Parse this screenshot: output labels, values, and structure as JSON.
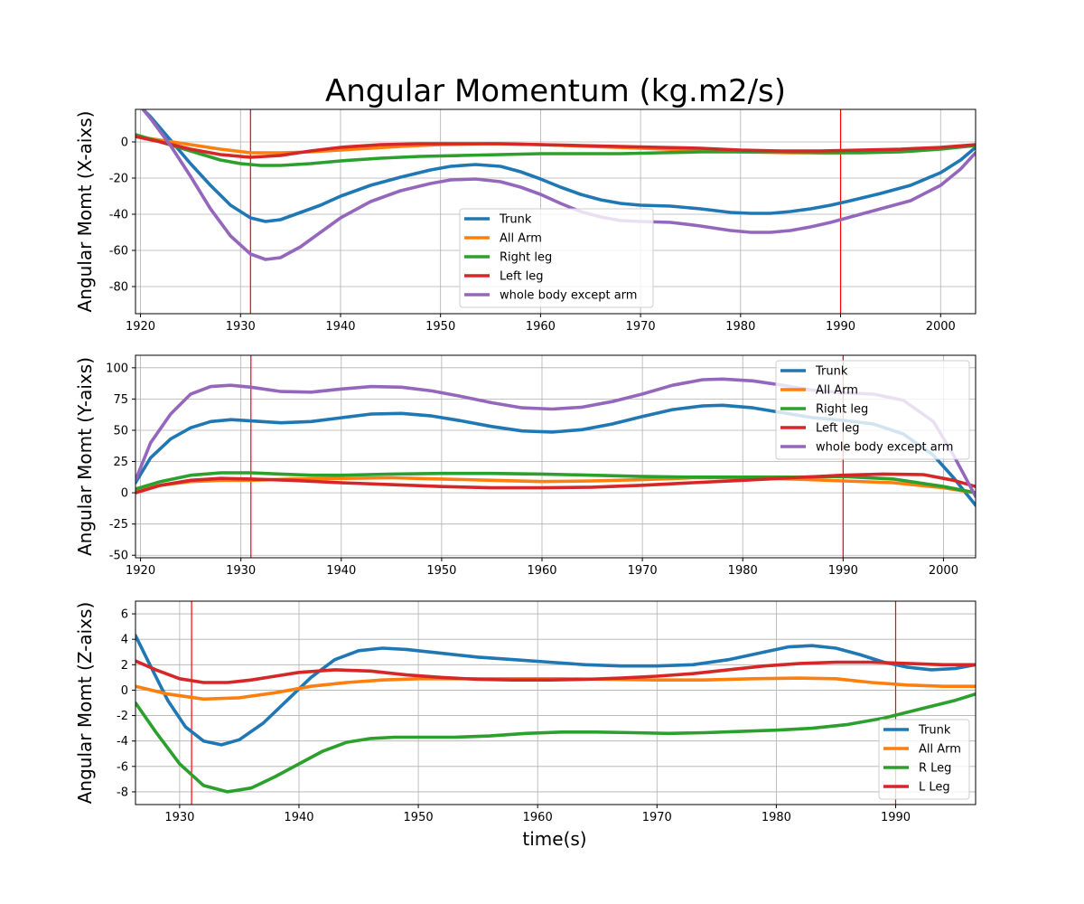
{
  "figure": {
    "title": "Angular Momentum (kg.m2/s)",
    "xlabel": "time(s)"
  },
  "chart_data": [
    {
      "type": "line",
      "ylabel": "Angular Momt (X-aixs)",
      "xlim": [
        1919.5,
        2003.5
      ],
      "ylim": [
        -95,
        18
      ],
      "xticks": [
        1920,
        1930,
        1940,
        1950,
        1960,
        1970,
        1980,
        1990,
        2000
      ],
      "yticks": [
        0,
        -20,
        -40,
        -60,
        -80
      ],
      "grid": true,
      "legend_position": "lower-center",
      "vlines": [
        1931,
        1990
      ],
      "series": [
        {
          "name": "Trunk",
          "color": "#1f77b4",
          "x": [
            1919.5,
            1921,
            1923,
            1925,
            1927,
            1929,
            1931,
            1932.5,
            1934,
            1936,
            1938,
            1940,
            1943,
            1946,
            1949,
            1951,
            1953.5,
            1956,
            1958,
            1960,
            1962,
            1964,
            1966,
            1968,
            1970,
            1973,
            1976,
            1979,
            1981,
            1983,
            1985,
            1987,
            1989,
            1991,
            1994,
            1997,
            2000,
            2002,
            2003.5
          ],
          "y": [
            22,
            14,
            1,
            -12,
            -24,
            -35,
            -42,
            -44,
            -43,
            -39,
            -35,
            -30,
            -24,
            -19.5,
            -15.5,
            -13.5,
            -12.5,
            -13.5,
            -16.5,
            -20.5,
            -25,
            -29,
            -32,
            -34,
            -35,
            -35.5,
            -37,
            -39,
            -39.5,
            -39.5,
            -38.5,
            -37,
            -35,
            -32.5,
            -28.5,
            -24,
            -17,
            -10,
            -3
          ]
        },
        {
          "name": "All Arm",
          "color": "#ff7f0e",
          "x": [
            1919.5,
            1922,
            1925,
            1928,
            1931,
            1934,
            1937,
            1940,
            1943,
            1946,
            1950,
            1955,
            1960,
            1965,
            1970,
            1975,
            1980,
            1985,
            1990,
            1995,
            2000,
            2003.5
          ],
          "y": [
            3,
            1,
            -1.5,
            -4,
            -6,
            -6,
            -5.5,
            -4.5,
            -3.5,
            -2.5,
            -1.5,
            -1,
            -1.5,
            -2.5,
            -3.5,
            -4.5,
            -5.5,
            -6,
            -6,
            -5,
            -3.5,
            -2
          ]
        },
        {
          "name": "Right leg",
          "color": "#2ca02c",
          "x": [
            1919.5,
            1922,
            1925,
            1928,
            1930,
            1932,
            1934,
            1937,
            1940,
            1944,
            1948,
            1952,
            1956,
            1960,
            1964,
            1968,
            1972,
            1976,
            1980,
            1984,
            1988,
            1992,
            1996,
            2000,
            2003.5
          ],
          "y": [
            4,
            0,
            -5,
            -10,
            -12,
            -13,
            -13,
            -12,
            -10.5,
            -9,
            -8,
            -7.5,
            -7,
            -6.5,
            -6.5,
            -6.5,
            -6,
            -5.5,
            -5.5,
            -5.5,
            -6,
            -6,
            -5.5,
            -4,
            -2
          ]
        },
        {
          "name": "Left leg",
          "color": "#d62728",
          "x": [
            1919.5,
            1922,
            1925,
            1928,
            1931,
            1934,
            1937,
            1940,
            1944,
            1948,
            1952,
            1956,
            1960,
            1964,
            1968,
            1972,
            1976,
            1980,
            1984,
            1988,
            1992,
            1996,
            2000,
            2003.5
          ],
          "y": [
            3,
            0,
            -4,
            -7,
            -8.5,
            -7.5,
            -5,
            -3,
            -1.5,
            -1,
            -1,
            -1,
            -1.5,
            -2,
            -2.5,
            -3,
            -3.5,
            -4.5,
            -5,
            -5,
            -4.5,
            -4,
            -3,
            -1.5
          ]
        },
        {
          "name": "whole body except arm",
          "color": "#9467bd",
          "x": [
            1919.5,
            1921,
            1923,
            1925,
            1927,
            1929,
            1931,
            1932.5,
            1934,
            1936,
            1938,
            1940,
            1943,
            1946,
            1949,
            1951,
            1953.5,
            1956,
            1958,
            1960,
            1962,
            1964,
            1966,
            1968,
            1970,
            1973,
            1976,
            1979,
            1981,
            1983,
            1985,
            1987,
            1989,
            1991,
            1994,
            1997,
            2000,
            2002,
            2003.5
          ],
          "y": [
            23,
            13,
            -2,
            -19,
            -37,
            -52,
            -62,
            -65,
            -64,
            -58,
            -50,
            -42,
            -33,
            -27,
            -23,
            -21,
            -20.5,
            -22,
            -25,
            -29,
            -34,
            -38.5,
            -41.5,
            -43.5,
            -44,
            -44.5,
            -46.5,
            -49,
            -50,
            -50,
            -49,
            -47,
            -44.5,
            -41.5,
            -37,
            -32.5,
            -24,
            -15,
            -6
          ]
        }
      ]
    },
    {
      "type": "line",
      "ylabel": "Angular Momt (Y-aixs)",
      "xlim": [
        1919.5,
        2003.2
      ],
      "ylim": [
        -52,
        110
      ],
      "xticks": [
        1920,
        1930,
        1940,
        1950,
        1960,
        1970,
        1980,
        1990,
        2000
      ],
      "yticks": [
        100,
        75,
        50,
        25,
        0,
        -25,
        -50
      ],
      "grid": true,
      "legend_position": "upper-right",
      "vlines": [
        1931,
        1990
      ],
      "series": [
        {
          "name": "Trunk",
          "color": "#1f77b4",
          "x": [
            1919.5,
            1921,
            1923,
            1925,
            1927,
            1929,
            1931,
            1934,
            1937,
            1940,
            1943,
            1946,
            1949,
            1952,
            1955,
            1958,
            1961,
            1964,
            1967,
            1970,
            1973,
            1976,
            1978,
            1981,
            1984,
            1987,
            1990,
            1993,
            1996,
            1999,
            2001,
            2003.2
          ],
          "y": [
            8,
            28,
            43,
            52,
            57,
            58.5,
            57.5,
            56,
            57,
            60,
            63,
            63.5,
            61.5,
            57.5,
            53,
            49.5,
            48.5,
            50.5,
            55,
            61,
            66.5,
            69.5,
            70,
            68,
            64,
            60,
            58,
            55,
            47,
            30,
            12,
            -10
          ]
        },
        {
          "name": "All Arm",
          "color": "#ff7f0e",
          "x": [
            1919.5,
            1922,
            1925,
            1928,
            1931,
            1935,
            1940,
            1945,
            1950,
            1955,
            1960,
            1965,
            1970,
            1975,
            1980,
            1985,
            1990,
            1995,
            2000,
            2003.2
          ],
          "y": [
            2,
            6,
            9,
            10,
            10,
            11,
            11.5,
            12,
            11,
            10,
            9,
            9.5,
            10.5,
            12,
            12,
            11,
            9.5,
            8,
            4,
            0
          ]
        },
        {
          "name": "Right leg",
          "color": "#2ca02c",
          "x": [
            1919.5,
            1922,
            1925,
            1928,
            1931,
            1934,
            1937,
            1940,
            1945,
            1950,
            1955,
            1960,
            1965,
            1970,
            1975,
            1980,
            1985,
            1990,
            1995,
            2000,
            2003.2
          ],
          "y": [
            3,
            9,
            14,
            16,
            16,
            15,
            14,
            14,
            15,
            15.5,
            15.5,
            15,
            14,
            13,
            12.5,
            12.5,
            12.5,
            13,
            11,
            5,
            0
          ]
        },
        {
          "name": "Left leg",
          "color": "#d62728",
          "x": [
            1919.5,
            1922,
            1925,
            1928,
            1931,
            1935,
            1940,
            1945,
            1950,
            1955,
            1960,
            1965,
            1970,
            1975,
            1980,
            1985,
            1990,
            1994,
            1998,
            2001,
            2003.2
          ],
          "y": [
            0,
            6,
            10,
            11.5,
            11,
            10,
            8,
            6.5,
            5,
            4,
            4,
            4.5,
            6,
            8,
            10,
            12,
            14,
            15,
            14.5,
            10,
            5
          ]
        },
        {
          "name": "whole body except arm",
          "color": "#9467bd",
          "x": [
            1919.5,
            1921,
            1923,
            1925,
            1927,
            1929,
            1931,
            1934,
            1937,
            1940,
            1943,
            1946,
            1949,
            1952,
            1955,
            1958,
            1961,
            1964,
            1967,
            1970,
            1973,
            1976,
            1978,
            1981,
            1984,
            1987,
            1990,
            1993,
            1996,
            1999,
            2001,
            2003.2
          ],
          "y": [
            10,
            40,
            63,
            79,
            85,
            86,
            84.5,
            81,
            80.5,
            83,
            85,
            84.5,
            81.5,
            77,
            72,
            68,
            67,
            68.5,
            73,
            79,
            86,
            90.5,
            91,
            89.5,
            86,
            82,
            80,
            79,
            74,
            57,
            30,
            -3
          ]
        }
      ]
    },
    {
      "type": "line",
      "ylabel": "Angular Momt (Z-aixs)",
      "xlim": [
        1926.3,
        1996.7
      ],
      "ylim": [
        -9,
        7
      ],
      "xticks": [
        1930,
        1940,
        1950,
        1960,
        1970,
        1980,
        1990
      ],
      "yticks": [
        6,
        4,
        2,
        0,
        -2,
        -4,
        -6,
        -8
      ],
      "grid": true,
      "legend_position": "lower-right",
      "vlines": [
        1931,
        1990
      ],
      "series": [
        {
          "name": "Trunk",
          "color": "#1f77b4",
          "x": [
            1926.3,
            1927.5,
            1929,
            1930.5,
            1932,
            1933.5,
            1935,
            1937,
            1939,
            1941,
            1943,
            1945,
            1947,
            1949,
            1952,
            1955,
            1958,
            1961,
            1964,
            1967,
            1970,
            1973,
            1976,
            1979,
            1981,
            1983,
            1985,
            1987,
            1989,
            1991,
            1993,
            1995,
            1996.7
          ],
          "y": [
            4.3,
            2,
            -0.8,
            -2.9,
            -4,
            -4.3,
            -3.9,
            -2.6,
            -0.8,
            1,
            2.4,
            3.1,
            3.3,
            3.2,
            2.9,
            2.6,
            2.4,
            2.2,
            2,
            1.9,
            1.9,
            2,
            2.4,
            3,
            3.4,
            3.5,
            3.3,
            2.8,
            2.2,
            1.8,
            1.6,
            1.7,
            2
          ]
        },
        {
          "name": "All Arm",
          "color": "#ff7f0e",
          "x": [
            1926.3,
            1929,
            1932,
            1935,
            1938,
            1941,
            1944,
            1947,
            1950,
            1954,
            1958,
            1962,
            1966,
            1970,
            1974,
            1978,
            1982,
            1985,
            1988,
            1991,
            1994,
            1996.7
          ],
          "y": [
            0.3,
            -0.3,
            -0.7,
            -0.6,
            -0.2,
            0.3,
            0.6,
            0.8,
            0.9,
            0.9,
            0.9,
            0.9,
            0.85,
            0.8,
            0.8,
            0.9,
            0.95,
            0.9,
            0.6,
            0.4,
            0.3,
            0.3
          ]
        },
        {
          "name": "R Leg",
          "color": "#2ca02c",
          "x": [
            1926.3,
            1928,
            1930,
            1932,
            1934,
            1936,
            1938,
            1940,
            1942,
            1944,
            1946,
            1948,
            1950,
            1953,
            1956,
            1959,
            1962,
            1965,
            1968,
            1971,
            1974,
            1977,
            1980,
            1983,
            1986,
            1989,
            1992,
            1995,
            1996.7
          ],
          "y": [
            -1,
            -3.3,
            -5.8,
            -7.5,
            -8,
            -7.7,
            -6.8,
            -5.8,
            -4.8,
            -4.1,
            -3.8,
            -3.7,
            -3.7,
            -3.7,
            -3.6,
            -3.4,
            -3.3,
            -3.3,
            -3.35,
            -3.4,
            -3.35,
            -3.25,
            -3.15,
            -3,
            -2.7,
            -2.2,
            -1.5,
            -0.8,
            -0.3
          ]
        },
        {
          "name": "L Leg",
          "color": "#d62728",
          "x": [
            1926.3,
            1928,
            1930,
            1932,
            1934,
            1936,
            1938,
            1940,
            1943,
            1946,
            1949,
            1952,
            1955,
            1958,
            1961,
            1964,
            1967,
            1970,
            1973,
            1976,
            1979,
            1982,
            1985,
            1988,
            1991,
            1994,
            1996.7
          ],
          "y": [
            2.3,
            1.6,
            0.9,
            0.6,
            0.6,
            0.8,
            1.1,
            1.4,
            1.6,
            1.5,
            1.2,
            1,
            0.85,
            0.8,
            0.8,
            0.85,
            0.95,
            1.1,
            1.3,
            1.6,
            1.9,
            2.1,
            2.2,
            2.2,
            2.1,
            2,
            2
          ]
        }
      ]
    }
  ]
}
